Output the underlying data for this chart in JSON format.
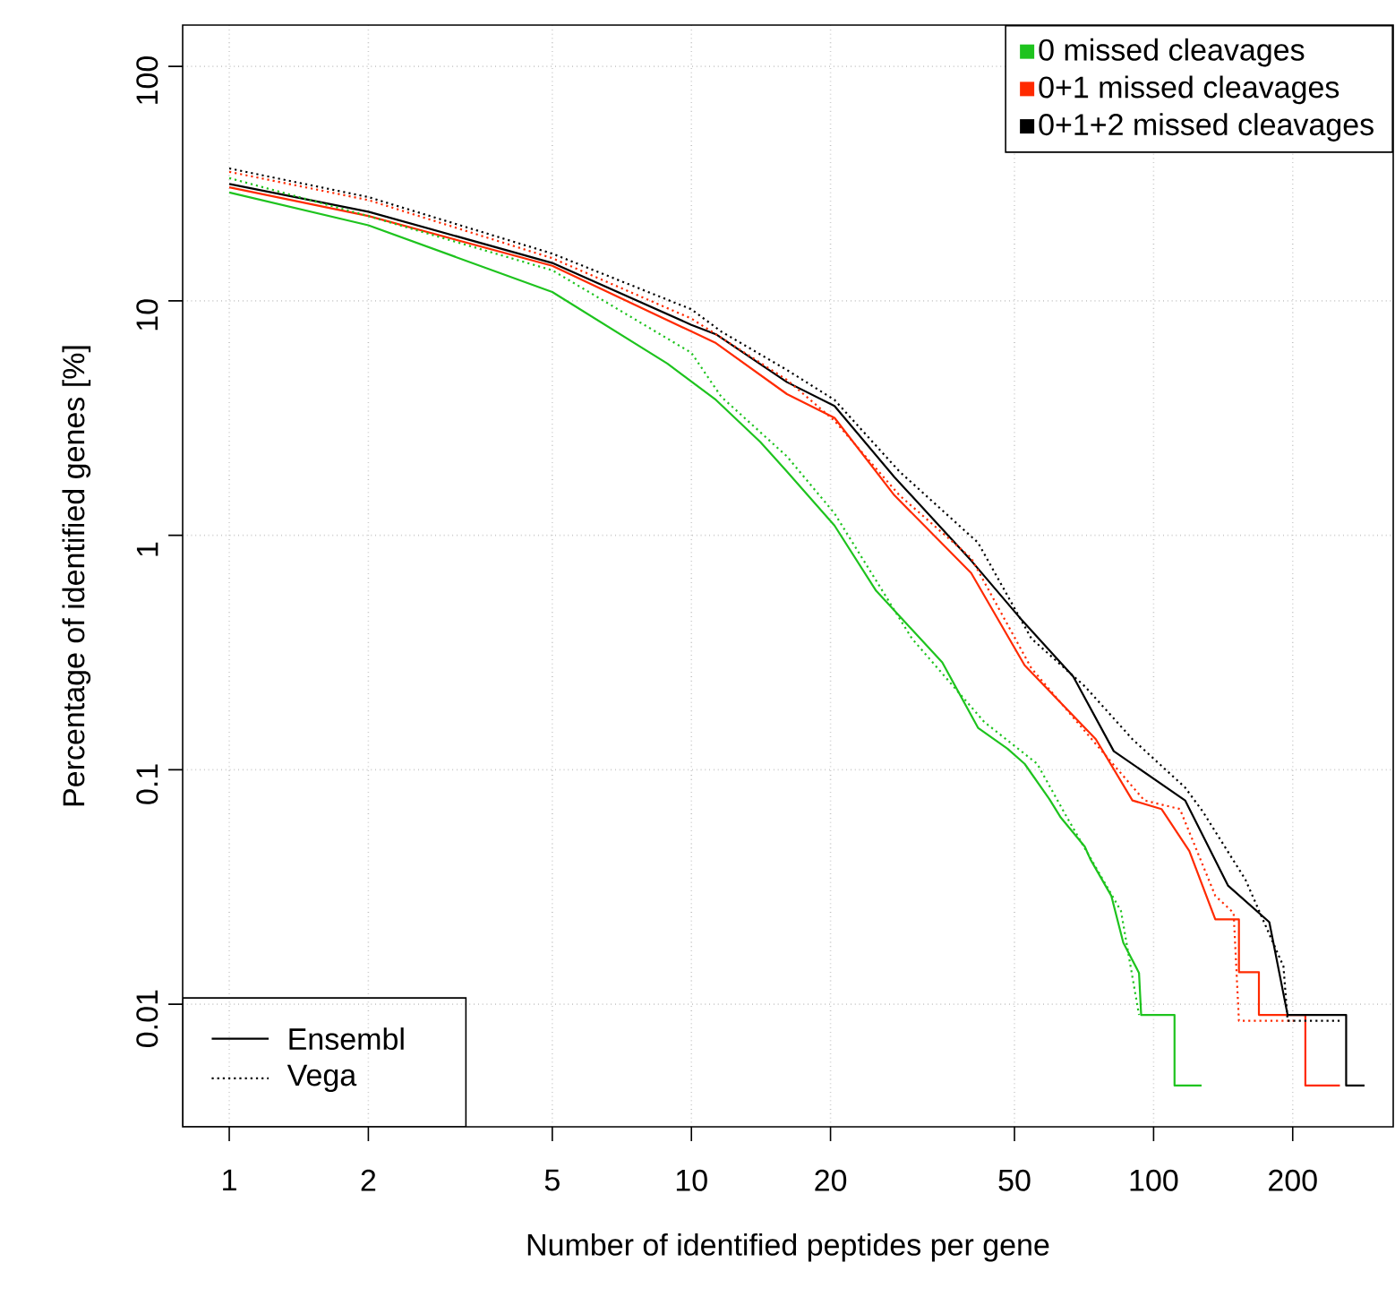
{
  "chart_data": {
    "type": "line",
    "xlabel": "Number of identified peptides per gene",
    "ylabel": "Percentage of identified genes [%]",
    "log": "xy",
    "grid": true,
    "legend": "top right",
    "marker": "none",
    "xlim": [
      0.793,
      330
    ],
    "ylim": [
      0.003,
      150
    ],
    "xticks": [
      1,
      2,
      5,
      10,
      20,
      50,
      100,
      200
    ],
    "yticks": [
      0.01,
      0.1,
      1,
      10,
      100
    ],
    "annotations": [
      "Ensembl",
      "Vega"
    ],
    "series": [
      {
        "name": "0 missed cleavages",
        "color": "#1ec31e",
        "line_style": "solid",
        "x": [
          1,
          2,
          5,
          8.87,
          11.3,
          14.1,
          16.1,
          20.4,
          25.1,
          29.2,
          34.9,
          41.7,
          48.3,
          52.6,
          59.5,
          63,
          71,
          73,
          81,
          86,
          93,
          94,
          111,
          111,
          127
        ],
        "values": [
          29,
          21,
          10.9,
          5.4,
          3.78,
          2.5,
          1.87,
          1.1,
          0.58,
          0.42,
          0.287,
          0.151,
          0.123,
          0.106,
          0.075,
          0.0625,
          0.047,
          0.0415,
          0.029,
          0.0183,
          0.0136,
          0.009,
          0.009,
          0.0045,
          0.0045
        ]
      },
      {
        "name": "0+1 missed cleavages",
        "color": "#ff2a00",
        "line_style": "solid",
        "x": [
          1,
          2,
          5,
          10,
          11.3,
          16.1,
          20.4,
          27.5,
          40.3,
          52.6,
          75,
          90,
          104,
          119.5,
          136,
          153,
          153,
          169,
          169,
          213,
          213,
          253
        ],
        "values": [
          30.5,
          23,
          14.1,
          7.4,
          6.6,
          4.0,
          3.17,
          1.48,
          0.69,
          0.279,
          0.135,
          0.074,
          0.068,
          0.045,
          0.023,
          0.023,
          0.0137,
          0.0137,
          0.009,
          0.009,
          0.0045,
          0.0045
        ]
      },
      {
        "name": "0+1+2 missed cleavages",
        "color": "#000000",
        "line_style": "solid",
        "x": [
          1,
          2,
          5,
          10,
          11.3,
          16.1,
          20.4,
          27.5,
          40.3,
          51.3,
          67,
          82,
          117,
          145,
          178,
          195,
          261,
          261,
          286
        ],
        "values": [
          31.5,
          24,
          14.5,
          7.9,
          7.2,
          4.5,
          3.56,
          1.77,
          0.78,
          0.446,
          0.25,
          0.12,
          0.074,
          0.032,
          0.0224,
          0.009,
          0.009,
          0.0045,
          0.0045
        ]
      },
      {
        "color": "#1ec31e",
        "line_style": "dotted",
        "x": [
          1,
          2,
          5,
          10,
          11.6,
          16.1,
          20.4,
          30,
          43,
          56,
          65,
          85,
          93
        ],
        "values": [
          33.4,
          23,
          13.5,
          6.0,
          3.9,
          2.17,
          1.24,
          0.363,
          0.16,
          0.106,
          0.0625,
          0.025,
          0.009
        ]
      },
      {
        "color": "#ff2a00",
        "line_style": "dotted",
        "x": [
          1,
          2,
          5,
          10,
          16.1,
          20.4,
          28.2,
          40.3,
          54.4,
          77.6,
          95.5,
          114,
          136,
          149,
          153,
          201
        ],
        "values": [
          35.5,
          26.9,
          15.2,
          8.4,
          4.6,
          3.08,
          1.48,
          0.8,
          0.271,
          0.119,
          0.074,
          0.068,
          0.029,
          0.0245,
          0.0085,
          0.0085
        ]
      },
      {
        "color": "#000000",
        "line_style": "dotted",
        "x": [
          1,
          2,
          5,
          10,
          11.6,
          16.1,
          20.4,
          28.2,
          41.7,
          54.4,
          71,
          90,
          117,
          128,
          158,
          191,
          195,
          256
        ],
        "values": [
          36.7,
          27.7,
          15.9,
          9.2,
          7.4,
          5.07,
          3.78,
          1.87,
          0.93,
          0.363,
          0.227,
          0.135,
          0.084,
          0.066,
          0.034,
          0.0145,
          0.0085,
          0.0085
        ]
      }
    ]
  }
}
